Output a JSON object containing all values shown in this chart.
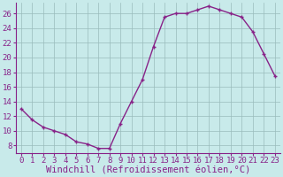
{
  "x": [
    0,
    1,
    2,
    3,
    4,
    5,
    6,
    7,
    8,
    9,
    10,
    11,
    12,
    13,
    14,
    15,
    16,
    17,
    18,
    19,
    20,
    21,
    22,
    23
  ],
  "y": [
    13,
    11.5,
    10.5,
    10,
    9.5,
    8.5,
    8.2,
    7.6,
    7.6,
    11,
    14,
    17,
    21.5,
    25.5,
    26,
    26,
    26.5,
    27,
    26.5,
    26,
    25.5,
    23.5,
    20.5,
    17.5
  ],
  "line_color": "#882288",
  "marker": "+",
  "bg_color": "#c8eaea",
  "grid_color": "#99bbbb",
  "xlabel": "Windchill (Refroidissement éolien,°C)",
  "xlim": [
    -0.5,
    23.5
  ],
  "ylim": [
    7,
    27.5
  ],
  "yticks": [
    8,
    10,
    12,
    14,
    16,
    18,
    20,
    22,
    24,
    26
  ],
  "xticks": [
    0,
    1,
    2,
    3,
    4,
    5,
    6,
    7,
    8,
    9,
    10,
    11,
    12,
    13,
    14,
    15,
    16,
    17,
    18,
    19,
    20,
    21,
    22,
    23
  ],
  "axis_color": "#882288",
  "font_size": 6.5,
  "xlabel_fontsize": 7.5,
  "linewidth": 1.0,
  "markersize": 3.5,
  "markeredgewidth": 1.0
}
